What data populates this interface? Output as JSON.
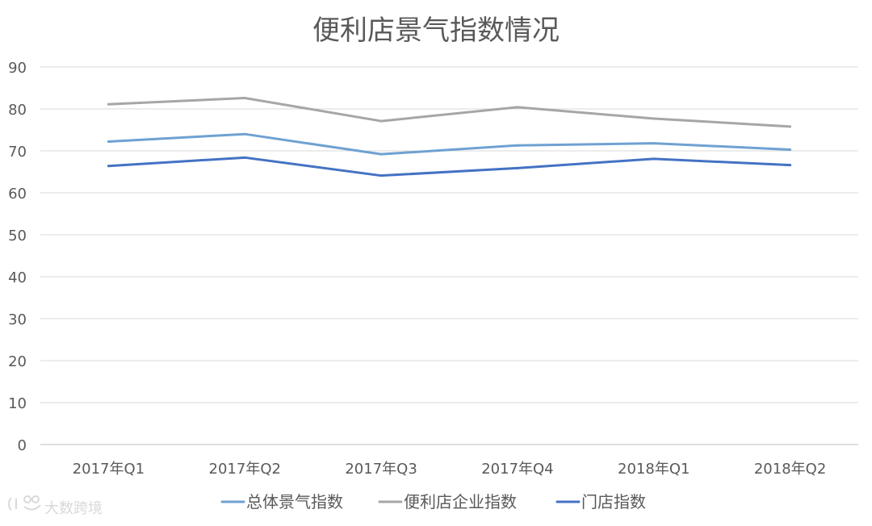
{
  "chart_data": {
    "type": "line",
    "title": "便利店景气指数情况",
    "categories": [
      "2017年Q1",
      "2017年Q2",
      "2017年Q3",
      "2017年Q4",
      "2018年Q1",
      "2018年Q2"
    ],
    "series": [
      {
        "name": "总体景气指数",
        "color": "#6fa1d2",
        "values": [
          72.2,
          74.0,
          69.2,
          71.3,
          71.8,
          70.3
        ]
      },
      {
        "name": "便利店企业指数",
        "color": "#a6a6a6",
        "values": [
          81.1,
          82.6,
          77.1,
          80.4,
          77.7,
          75.8
        ]
      },
      {
        "name": "门店指数",
        "color": "#4472c4",
        "values": [
          66.4,
          68.4,
          64.1,
          65.9,
          68.1,
          66.6
        ]
      }
    ],
    "ylim": [
      0,
      90
    ],
    "yticks": [
      0,
      10,
      20,
      30,
      40,
      50,
      60,
      70,
      80,
      90
    ],
    "grid": true,
    "legend_position": "bottom"
  },
  "watermark": {
    "text": "大数跨境"
  }
}
